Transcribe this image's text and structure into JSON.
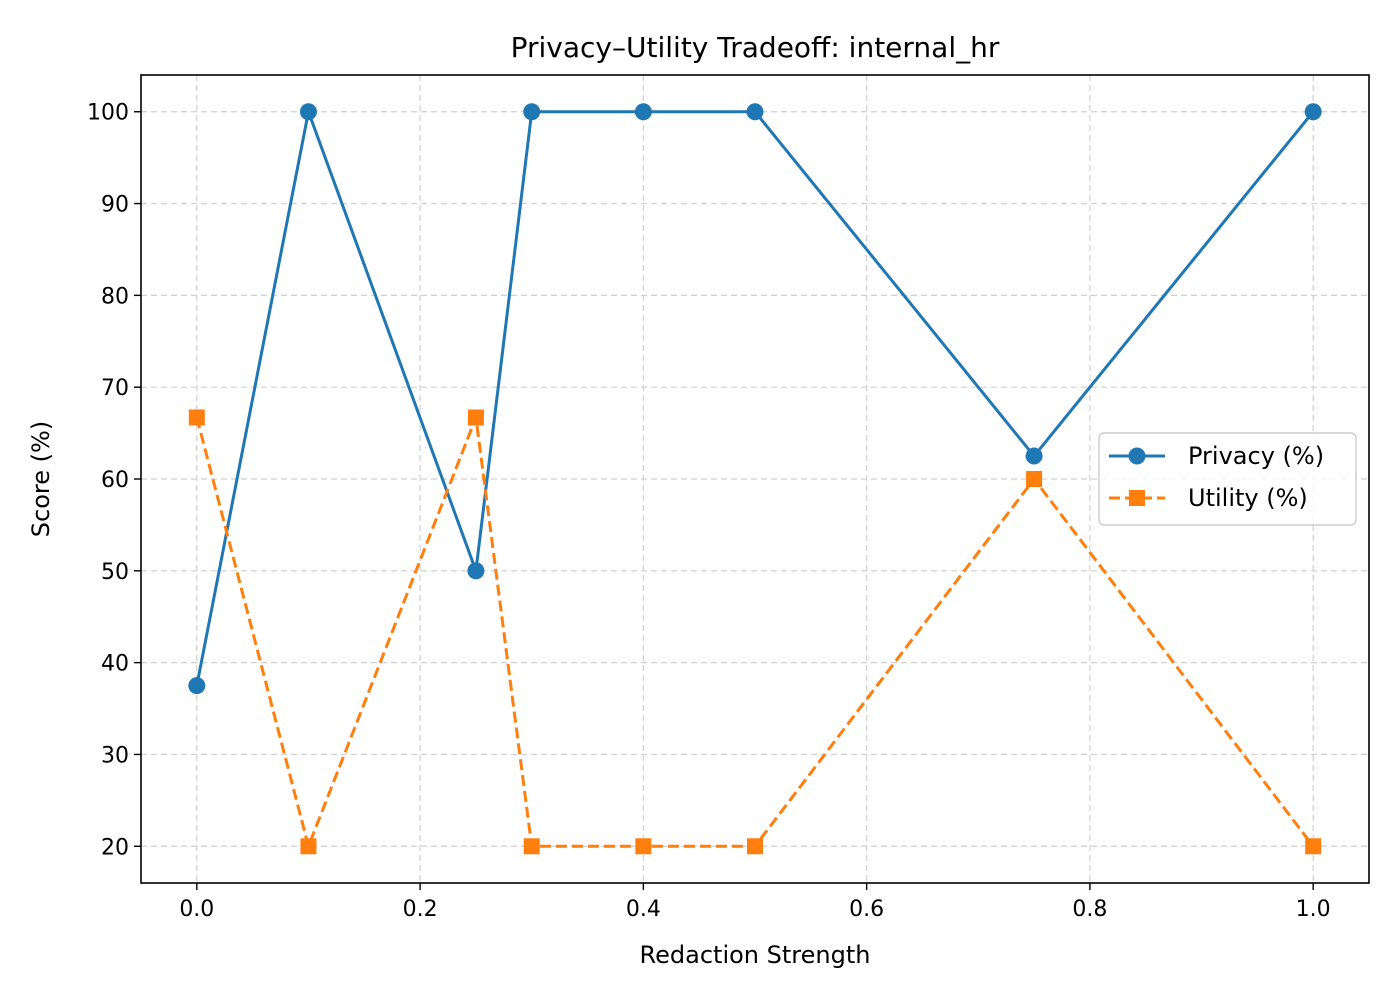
{
  "chart_data": {
    "type": "line",
    "title": "Privacy–Utility Tradeoff: internal_hr",
    "xlabel": "Redaction Strength",
    "ylabel": "Score (%)",
    "xlim": [
      -0.05,
      1.05
    ],
    "ylim": [
      16,
      104
    ],
    "xticks": [
      "0.0",
      "0.2",
      "0.4",
      "0.6",
      "0.8",
      "1.0"
    ],
    "yticks": [
      "20",
      "30",
      "40",
      "50",
      "60",
      "70",
      "80",
      "90",
      "100"
    ],
    "grid": true,
    "legend_position": "right",
    "x": [
      0.0,
      0.1,
      0.25,
      0.3,
      0.4,
      0.5,
      0.75,
      1.0
    ],
    "series": [
      {
        "name": "Privacy (%)",
        "values": [
          37.5,
          100,
          50,
          100,
          100,
          100,
          62.5,
          100
        ],
        "color": "#1f77b4",
        "marker": "circle",
        "line_style": "solid"
      },
      {
        "name": "Utility (%)",
        "values": [
          66.7,
          20,
          66.7,
          20,
          20,
          20,
          60,
          20
        ],
        "color": "#ff7f0e",
        "marker": "square",
        "line_style": "dashed"
      }
    ]
  }
}
